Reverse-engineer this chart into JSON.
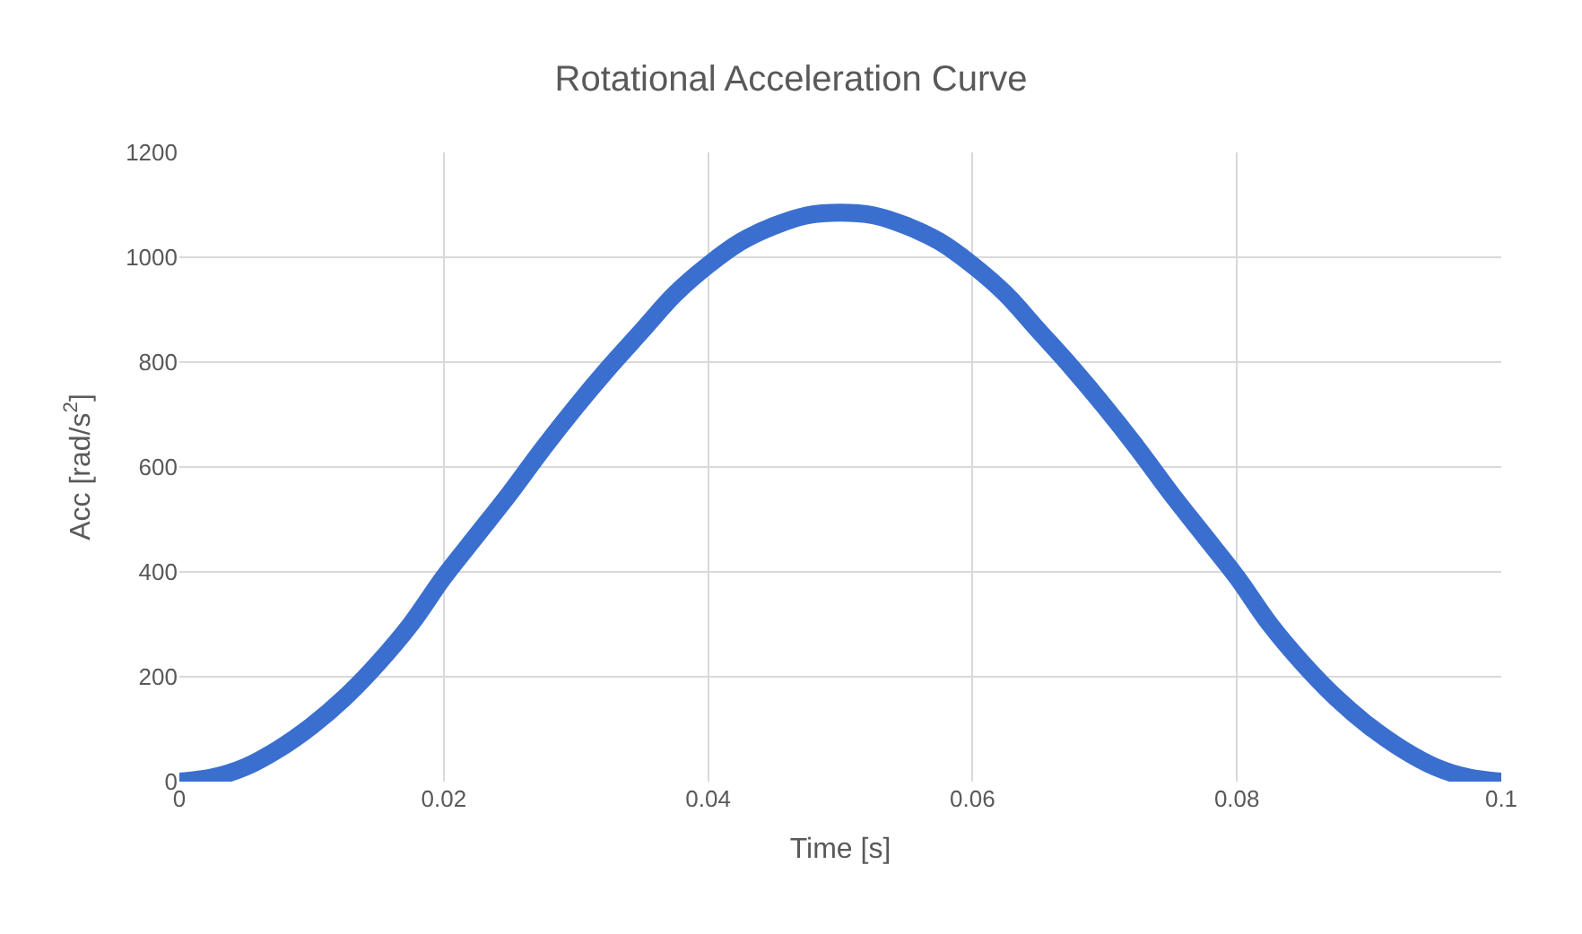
{
  "chart_data": {
    "type": "line",
    "title": "Rotational Acceleration Curve",
    "xlabel": "Time [s]",
    "ylabel": "Acc [rad/s$^{2}$]",
    "x": [
      0,
      0.0025,
      0.005,
      0.0075,
      0.01,
      0.0125,
      0.015,
      0.0175,
      0.02,
      0.0225,
      0.025,
      0.0275,
      0.03,
      0.0325,
      0.035,
      0.0375,
      0.04,
      0.0425,
      0.045,
      0.0475,
      0.05,
      0.0525,
      0.055,
      0.0575,
      0.06,
      0.0625,
      0.065,
      0.0675,
      0.07,
      0.0725,
      0.075,
      0.0775,
      0.08,
      0.0825,
      0.085,
      0.0875,
      0.09,
      0.0925,
      0.095,
      0.0975,
      0.1
    ],
    "series": [
      {
        "color": "#3a6fcf",
        "values": [
          0,
          8,
          28,
          62,
          106,
          160,
          225,
          300,
          390,
          470,
          550,
          635,
          715,
          790,
          860,
          930,
          985,
          1030,
          1060,
          1080,
          1085,
          1080,
          1060,
          1030,
          985,
          930,
          860,
          790,
          715,
          635,
          550,
          470,
          390,
          300,
          225,
          160,
          106,
          62,
          28,
          8,
          0
        ]
      }
    ],
    "xlim": [
      0,
      0.1
    ],
    "xticks": [
      0,
      0.02,
      0.04,
      0.06,
      0.08,
      0.1
    ],
    "ylim": [
      0,
      1200
    ],
    "yticks": [
      0,
      200,
      400,
      600,
      800,
      1000,
      1200
    ],
    "grid": true,
    "legend": false,
    "line_style": "solid"
  }
}
